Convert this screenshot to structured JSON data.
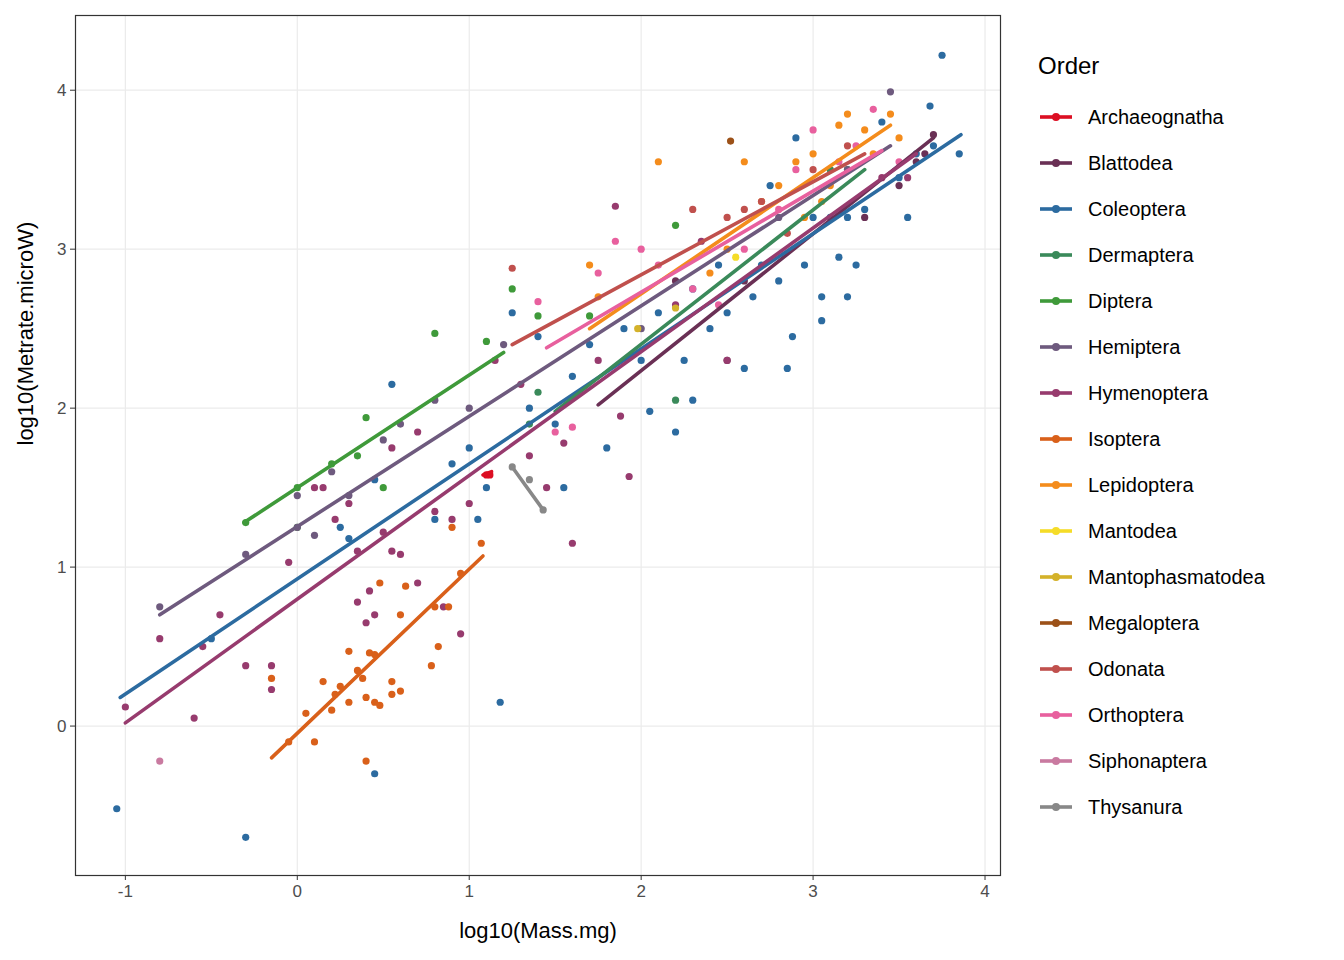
{
  "chart_data": {
    "type": "scatter",
    "x_label": "log10(Mass.mg)",
    "y_label": "log10(Metrate.microW)",
    "legend_title": "Order",
    "legend": "right",
    "grid": true,
    "xlim": [
      -1.29,
      4.09
    ],
    "ylim": [
      -0.94,
      4.47
    ],
    "xticks": [
      -1,
      0,
      1,
      2,
      3,
      4
    ],
    "yticks": [
      0,
      1,
      2,
      3,
      4
    ],
    "series": [
      {
        "name": "Archaeognatha",
        "color": "#dc0f23",
        "x": [
          1.1,
          1.12
        ],
        "values": [
          1.58,
          1.58
        ],
        "fit_x": [
          1.08,
          1.13
        ],
        "fit_values": [
          1.58,
          1.6
        ]
      },
      {
        "name": "Blattodea",
        "color": "#6a3055",
        "x": [
          2.5,
          3.3,
          3.5,
          3.6,
          3.65,
          3.7,
          2.2,
          2.6
        ],
        "values": [
          2.3,
          3.2,
          3.4,
          3.55,
          3.6,
          3.72,
          2.8,
          2.8
        ],
        "fit_x": [
          1.75,
          3.7
        ],
        "fit_values": [
          2.02,
          3.7
        ]
      },
      {
        "name": "Coleoptera",
        "color": "#2c6ba0",
        "x": [
          -1.05,
          -0.5,
          -0.3,
          0.25,
          0.3,
          0.45,
          0.45,
          0.55,
          0.8,
          0.9,
          1.0,
          1.05,
          1.1,
          1.18,
          1.25,
          1.35,
          1.4,
          1.5,
          1.55,
          1.6,
          1.7,
          1.8,
          1.9,
          2.0,
          2.05,
          2.1,
          2.2,
          2.25,
          2.3,
          2.4,
          2.5,
          2.6,
          2.65,
          2.7,
          2.75,
          2.8,
          2.85,
          2.9,
          2.95,
          3.0,
          3.05,
          3.1,
          3.15,
          3.2,
          3.25,
          3.3,
          3.4,
          3.5,
          3.55,
          3.6,
          3.68,
          3.7,
          3.75,
          3.85,
          3.05,
          2.88,
          3.2,
          2.45,
          2.3
        ],
        "values": [
          -0.52,
          0.55,
          -0.7,
          1.25,
          1.18,
          1.55,
          -0.3,
          2.15,
          1.3,
          1.65,
          1.75,
          1.3,
          1.5,
          0.15,
          2.6,
          2.0,
          2.45,
          1.9,
          1.5,
          2.2,
          2.4,
          1.75,
          2.5,
          2.3,
          1.98,
          2.6,
          1.85,
          2.3,
          2.05,
          2.5,
          2.6,
          2.25,
          2.7,
          2.9,
          3.4,
          2.8,
          2.25,
          3.7,
          2.9,
          3.2,
          2.7,
          3.2,
          2.95,
          3.2,
          2.9,
          3.25,
          3.8,
          3.45,
          3.2,
          3.6,
          3.9,
          3.65,
          4.22,
          3.6,
          2.55,
          2.45,
          2.7,
          2.9,
          2.75
        ],
        "fit_x": [
          -1.03,
          3.86
        ],
        "fit_values": [
          0.18,
          3.72
        ]
      },
      {
        "name": "Dermaptera",
        "color": "#3a8a5a",
        "x": [
          1.4,
          1.35,
          2.2,
          3.1
        ],
        "values": [
          2.1,
          1.9,
          2.05,
          3.5
        ],
        "fit_x": [
          1.5,
          3.3
        ],
        "fit_values": [
          1.98,
          3.5
        ]
      },
      {
        "name": "Diptera",
        "color": "#3f9a3a",
        "x": [
          -0.3,
          0.0,
          0.0,
          0.2,
          0.35,
          0.4,
          0.5,
          0.8,
          1.1,
          1.25,
          1.4,
          2.2,
          3.2,
          1.7
        ],
        "values": [
          1.28,
          1.5,
          1.25,
          1.65,
          1.7,
          1.94,
          1.5,
          2.47,
          2.42,
          2.75,
          2.58,
          3.15,
          3.5,
          2.58
        ],
        "fit_x": [
          -0.31,
          1.2
        ],
        "fit_values": [
          1.28,
          2.35
        ]
      },
      {
        "name": "Hemiptera",
        "color": "#6e5a7e",
        "x": [
          -0.8,
          -0.3,
          0.0,
          0.0,
          0.1,
          0.2,
          0.3,
          0.5,
          0.6,
          0.8,
          1.0,
          1.2,
          2.0,
          3.45,
          3.2,
          2.8
        ],
        "values": [
          0.75,
          1.08,
          1.25,
          1.45,
          1.2,
          1.6,
          1.45,
          1.8,
          1.9,
          2.05,
          2.0,
          2.4,
          2.5,
          3.99,
          3.5,
          3.2
        ],
        "fit_x": [
          -0.8,
          3.45
        ],
        "fit_values": [
          0.7,
          3.65
        ]
      },
      {
        "name": "Hymenoptera",
        "color": "#973b6e",
        "x": [
          -1.0,
          -0.8,
          -0.6,
          -0.55,
          -0.45,
          -0.3,
          -0.15,
          -0.15,
          -0.05,
          0.1,
          0.15,
          0.22,
          0.3,
          0.35,
          0.35,
          0.4,
          0.42,
          0.45,
          0.5,
          0.55,
          0.55,
          0.6,
          0.7,
          0.7,
          0.8,
          0.85,
          0.9,
          0.95,
          1.0,
          1.15,
          1.3,
          1.35,
          1.45,
          1.55,
          1.6,
          1.75,
          1.85,
          1.88,
          1.93,
          2.2,
          2.5,
          3.4,
          3.55,
          2.35
        ],
        "values": [
          0.12,
          0.55,
          0.05,
          0.5,
          0.7,
          0.38,
          0.38,
          0.23,
          1.03,
          1.5,
          1.5,
          1.3,
          1.4,
          1.1,
          0.78,
          0.65,
          0.85,
          0.7,
          1.22,
          1.75,
          1.1,
          1.08,
          1.85,
          0.9,
          1.35,
          0.75,
          1.3,
          0.58,
          1.4,
          2.3,
          2.15,
          1.7,
          1.5,
          1.78,
          1.15,
          2.3,
          3.27,
          1.95,
          1.57,
          2.65,
          2.3,
          3.45,
          3.45,
          3.05
        ],
        "fit_x": [
          -1.0,
          3.6
        ],
        "fit_values": [
          0.02,
          3.6
        ]
      },
      {
        "name": "Isoptera",
        "color": "#d9601a",
        "x": [
          -0.15,
          -0.05,
          0.05,
          0.1,
          0.15,
          0.22,
          0.25,
          0.3,
          0.3,
          0.35,
          0.38,
          0.4,
          0.42,
          0.4,
          0.45,
          0.45,
          0.48,
          0.55,
          0.55,
          0.6,
          0.63,
          0.6,
          0.78,
          0.8,
          0.82,
          0.88,
          0.9,
          0.95,
          1.07,
          0.2,
          0.48
        ],
        "values": [
          0.3,
          -0.1,
          0.08,
          -0.1,
          0.28,
          0.2,
          0.25,
          0.15,
          0.47,
          0.35,
          0.3,
          0.18,
          0.46,
          -0.22,
          0.45,
          0.15,
          0.9,
          0.28,
          0.2,
          0.7,
          0.88,
          0.22,
          0.38,
          0.75,
          0.5,
          0.75,
          1.25,
          0.96,
          1.15,
          0.1,
          0.13
        ],
        "fit_x": [
          -0.15,
          1.08
        ],
        "fit_values": [
          -0.2,
          1.07
        ]
      },
      {
        "name": "Lepidoptera",
        "color": "#f48c1c",
        "x": [
          1.7,
          1.75,
          2.1,
          2.5,
          2.6,
          2.7,
          2.8,
          2.9,
          3.0,
          3.1,
          3.15,
          3.2,
          3.3,
          3.35,
          3.45,
          3.5,
          2.4,
          3.05,
          2.95
        ],
        "values": [
          2.9,
          2.7,
          3.55,
          3.0,
          3.55,
          3.3,
          3.4,
          3.55,
          3.6,
          3.4,
          3.78,
          3.85,
          3.75,
          3.6,
          3.85,
          3.7,
          2.85,
          3.3,
          3.2
        ],
        "fit_x": [
          1.7,
          3.45
        ],
        "fit_values": [
          2.5,
          3.78
        ]
      },
      {
        "name": "Mantodea",
        "color": "#f5dc28",
        "x": [
          2.55
        ],
        "values": [
          2.95
        ]
      },
      {
        "name": "Mantophasmatodea",
        "color": "#d4b22a",
        "x": [
          1.98,
          2.2
        ],
        "values": [
          2.5,
          2.63
        ]
      },
      {
        "name": "Megaloptera",
        "color": "#9c5118",
        "x": [
          2.52
        ],
        "values": [
          3.68
        ]
      },
      {
        "name": "Odonata",
        "color": "#c0504d",
        "x": [
          1.25,
          2.3,
          2.5,
          2.7,
          2.85,
          3.0,
          3.2,
          2.6
        ],
        "values": [
          2.88,
          3.25,
          3.2,
          3.3,
          3.1,
          3.5,
          3.65,
          3.25
        ],
        "fit_x": [
          1.25,
          3.3
        ],
        "fit_values": [
          2.4,
          3.6
        ]
      },
      {
        "name": "Orthoptera",
        "color": "#e8609e",
        "x": [
          1.4,
          1.6,
          1.75,
          1.85,
          2.0,
          2.1,
          2.3,
          2.45,
          2.6,
          2.8,
          2.9,
          3.0,
          3.15,
          3.35,
          3.5,
          3.25,
          1.5
        ],
        "values": [
          2.67,
          1.88,
          2.85,
          3.05,
          3.0,
          2.9,
          2.75,
          2.65,
          3.0,
          3.25,
          3.5,
          3.75,
          3.55,
          3.88,
          3.55,
          3.65,
          1.85
        ],
        "fit_x": [
          1.45,
          3.4
        ],
        "fit_values": [
          2.38,
          3.62
        ]
      },
      {
        "name": "Siphonaptera",
        "color": "#c97aa0",
        "x": [
          -0.8
        ],
        "values": [
          -0.22
        ]
      },
      {
        "name": "Thysanura",
        "color": "#888888",
        "x": [
          1.25,
          1.35,
          1.43
        ],
        "values": [
          1.63,
          1.55,
          1.36
        ],
        "fit_x": [
          1.25,
          1.43
        ],
        "fit_values": [
          1.63,
          1.36
        ]
      }
    ]
  }
}
